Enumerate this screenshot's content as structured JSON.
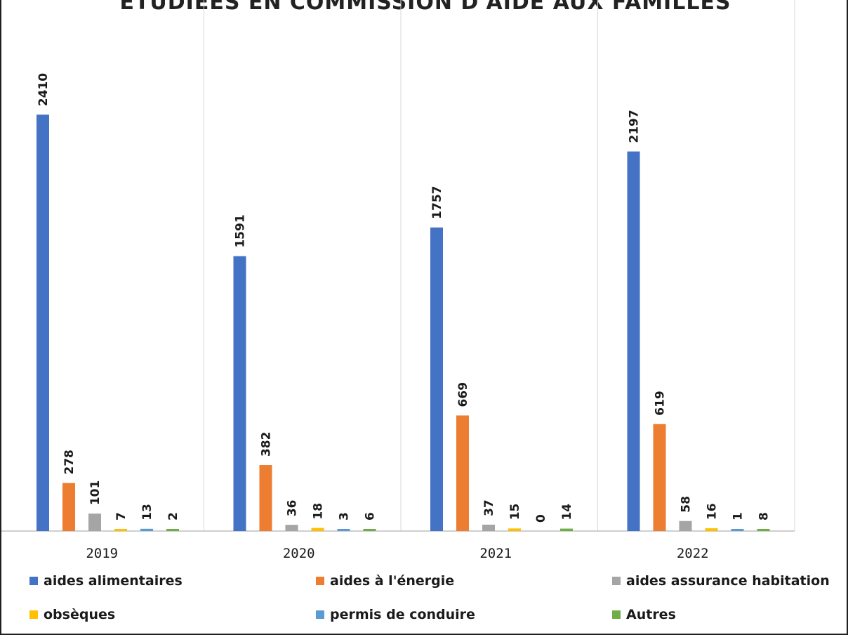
{
  "chart_data": {
    "type": "bar",
    "title": "ÉTUDIÉES EN COMMISSION D'AIDE AUX FAMILLES",
    "categories": [
      "2019",
      "2020",
      "2021",
      "2022"
    ],
    "series": [
      {
        "name": "aides alimentaires",
        "color": "#4472C4",
        "values": [
          2410,
          1591,
          1757,
          2197
        ]
      },
      {
        "name": "aides à l'énergie",
        "color": "#ED7D31",
        "values": [
          278,
          382,
          669,
          619
        ]
      },
      {
        "name": "aides assurance habitation",
        "color": "#A5A5A5",
        "values": [
          101,
          36,
          37,
          58
        ]
      },
      {
        "name": "obsèques",
        "color": "#FFC000",
        "values": [
          7,
          18,
          15,
          16
        ]
      },
      {
        "name": "permis de conduire",
        "color": "#5B9BD5",
        "values": [
          13,
          3,
          0,
          1
        ]
      },
      {
        "name": "Autres",
        "color": "#70AD47",
        "values": [
          2,
          6,
          14,
          8
        ]
      }
    ],
    "ylim": [
      0,
      2850
    ],
    "grid": "vertical category separators",
    "legend": "bottom"
  }
}
